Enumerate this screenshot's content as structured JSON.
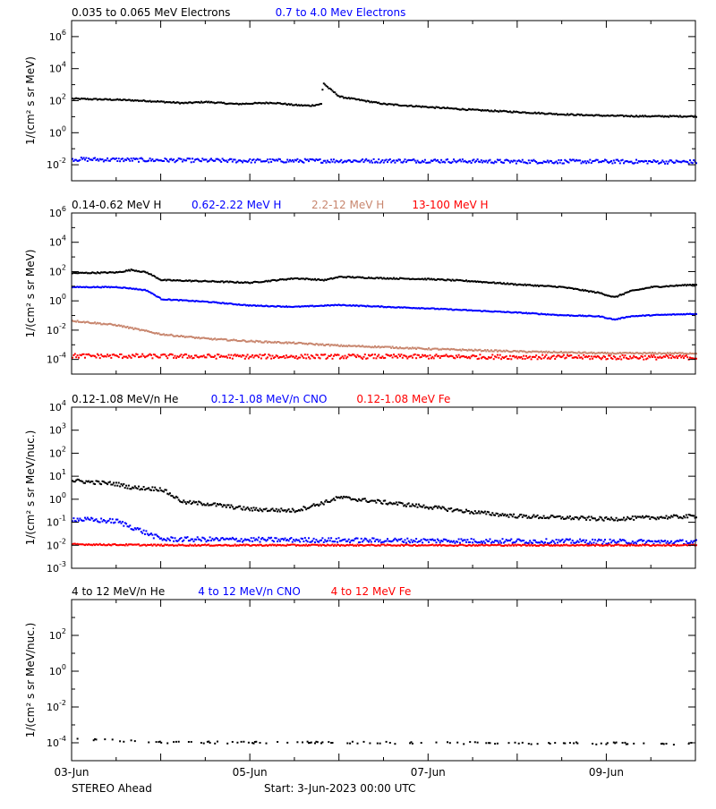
{
  "footer": {
    "spacecraft": "STEREO Ahead",
    "start_label": "Start:  3-Jun-2023 00:00 UTC"
  },
  "x_axis": {
    "start": "2023-06-03",
    "end": "2023-06-10",
    "tick_labels": [
      "03-Jun",
      "05-Jun",
      "07-Jun",
      "09-Jun"
    ],
    "tick_dates": [
      "2023-06-03",
      "2023-06-05",
      "2023-06-07",
      "2023-06-09"
    ]
  },
  "colors": {
    "black": "#000000",
    "blue": "#0000ff",
    "tan": "#c8866e",
    "red": "#ff0000"
  },
  "chart_data": [
    {
      "type": "scatter",
      "legend": [
        {
          "text": "0.035 to 0.065 MeV Electrons",
          "color": "#000000"
        },
        {
          "text": "0.7 to 4.0 Mev Electrons",
          "color": "#0000ff"
        }
      ],
      "ylabel": "1/(cm² s sr MeV)",
      "yscale": "log",
      "ylim_exp": [
        -3,
        7
      ],
      "ytick_exps": [
        -2,
        0,
        2,
        4,
        6
      ],
      "series": [
        {
          "color": "#000000",
          "noise": 0.04,
          "x": [
            "2023-06-03",
            "2023-06-03T12:00",
            "2023-06-03T20:00",
            "2023-06-04T06:00",
            "2023-06-04T12:00",
            "2023-06-04T20:00",
            "2023-06-05T06:00",
            "2023-06-05T12:00",
            "2023-06-05T16:00",
            "2023-06-05T19:00",
            "2023-06-05T19:30",
            "2023-06-05T21:00",
            "2023-06-06",
            "2023-06-06T12:00",
            "2023-06-07",
            "2023-06-07T12:00",
            "2023-06-08",
            "2023-06-08T12:00",
            "2023-06-09",
            "2023-06-09T12:00",
            "2023-06-10"
          ],
          "y": [
            150,
            130,
            110,
            80,
            95,
            70,
            85,
            60,
            55,
            70,
            1500,
            700,
            200,
            70,
            45,
            30,
            22,
            16,
            13,
            12,
            12
          ]
        },
        {
          "color": "#0000ff",
          "noise": 0.12,
          "x": [
            "2023-06-03",
            "2023-06-04",
            "2023-06-05",
            "2023-06-06",
            "2023-06-07",
            "2023-06-08",
            "2023-06-09",
            "2023-06-10"
          ],
          "y": [
            0.025,
            0.022,
            0.02,
            0.02,
            0.02,
            0.018,
            0.018,
            0.017
          ]
        }
      ]
    },
    {
      "type": "scatter",
      "legend": [
        {
          "text": "0.14-0.62 MeV H",
          "color": "#000000"
        },
        {
          "text": "0.62-2.22 MeV H",
          "color": "#0000ff"
        },
        {
          "text": "2.2-12 MeV H",
          "color": "#c8866e"
        },
        {
          "text": "13-100 MeV H",
          "color": "#ff0000"
        }
      ],
      "ylabel": "1/(cm² s sr MeV)",
      "yscale": "log",
      "ylim_exp": [
        -5,
        6
      ],
      "ytick_exps": [
        -4,
        -2,
        0,
        2,
        4,
        6
      ],
      "series": [
        {
          "color": "#000000",
          "noise": 0.04,
          "x": [
            "2023-06-03",
            "2023-06-03T12:00",
            "2023-06-03T16:00",
            "2023-06-03T20:00",
            "2023-06-04",
            "2023-06-04T12:00",
            "2023-06-05",
            "2023-06-05T12:00",
            "2023-06-05T20:00",
            "2023-06-06",
            "2023-06-06T12:00",
            "2023-06-07",
            "2023-06-07T12:00",
            "2023-06-08",
            "2023-06-08T12:00",
            "2023-06-08T22:00",
            "2023-06-09T02:00",
            "2023-06-09T06:00",
            "2023-06-09T12:00",
            "2023-06-10"
          ],
          "y": [
            90,
            100,
            150,
            100,
            30,
            25,
            20,
            40,
            30,
            50,
            40,
            35,
            25,
            15,
            10,
            4,
            2,
            5,
            10,
            15
          ]
        },
        {
          "color": "#0000ff",
          "noise": 0.03,
          "x": [
            "2023-06-03",
            "2023-06-03T12:00",
            "2023-06-03T16:00",
            "2023-06-03T20:00",
            "2023-06-04",
            "2023-06-04T12:00",
            "2023-06-05",
            "2023-06-05T12:00",
            "2023-06-06",
            "2023-06-06T12:00",
            "2023-06-07",
            "2023-06-07T12:00",
            "2023-06-08",
            "2023-06-08T12:00",
            "2023-06-08T22:00",
            "2023-06-09T02:00",
            "2023-06-09T06:00",
            "2023-06-09T12:00",
            "2023-06-10"
          ],
          "y": [
            10,
            10,
            8,
            6,
            1.5,
            1.0,
            0.55,
            0.45,
            0.6,
            0.45,
            0.35,
            0.25,
            0.18,
            0.12,
            0.1,
            0.06,
            0.1,
            0.12,
            0.15
          ]
        },
        {
          "color": "#c8866e",
          "noise": 0.05,
          "x": [
            "2023-06-03",
            "2023-06-03T12:00",
            "2023-06-04",
            "2023-06-04T12:00",
            "2023-06-05",
            "2023-06-05T12:00",
            "2023-06-06",
            "2023-06-06T12:00",
            "2023-06-07",
            "2023-06-08",
            "2023-06-09",
            "2023-06-10"
          ],
          "y": [
            0.05,
            0.025,
            0.006,
            0.003,
            0.002,
            0.0015,
            0.001,
            0.0008,
            0.0006,
            0.0004,
            0.0003,
            0.0003
          ]
        },
        {
          "color": "#ff0000",
          "noise": 0.15,
          "x": [
            "2023-06-03",
            "2023-06-05",
            "2023-06-07",
            "2023-06-09",
            "2023-06-10"
          ],
          "y": [
            0.0002,
            0.00018,
            0.00018,
            0.00016,
            0.00016
          ]
        }
      ]
    },
    {
      "type": "scatter",
      "legend": [
        {
          "text": "0.12-1.08 MeV/n He",
          "color": "#000000"
        },
        {
          "text": "0.12-1.08 MeV/n CNO",
          "color": "#0000ff"
        },
        {
          "text": "0.12-1.08 MeV Fe",
          "color": "#ff0000"
        }
      ],
      "ylabel": "1/(cm² s sr MeV/nuc.)",
      "yscale": "log",
      "ylim_exp": [
        -3,
        4
      ],
      "ytick_exps": [
        -3,
        -2,
        -1,
        0,
        1,
        2,
        3,
        4
      ],
      "series": [
        {
          "color": "#000000",
          "noise": 0.08,
          "x": [
            "2023-06-03",
            "2023-06-03T12:00",
            "2023-06-03T16:00",
            "2023-06-04",
            "2023-06-04T06:00",
            "2023-06-04T12:00",
            "2023-06-05",
            "2023-06-05T12:00",
            "2023-06-05T20:00",
            "2023-06-06",
            "2023-06-06T12:00",
            "2023-06-07",
            "2023-06-07T12:00",
            "2023-06-08",
            "2023-06-09",
            "2023-06-10"
          ],
          "y": [
            7,
            5,
            3.5,
            3,
            0.8,
            0.7,
            0.4,
            0.35,
            0.8,
            1.3,
            0.8,
            0.5,
            0.3,
            0.2,
            0.15,
            0.2
          ]
        },
        {
          "color": "#0000ff",
          "noise": 0.1,
          "x": [
            "2023-06-03",
            "2023-06-03T12:00",
            "2023-06-03T18:00",
            "2023-06-04",
            "2023-06-10"
          ],
          "y": [
            0.15,
            0.12,
            0.05,
            0.02,
            0.015
          ]
        },
        {
          "color": "#ff0000",
          "noise": 0.03,
          "x": [
            "2023-06-03",
            "2023-06-04",
            "2023-06-10"
          ],
          "y": [
            0.012,
            0.011,
            0.011
          ]
        }
      ]
    },
    {
      "type": "scatter",
      "legend": [
        {
          "text": "4 to 12 MeV/n He",
          "color": "#000000"
        },
        {
          "text": "4 to 12 MeV/n CNO",
          "color": "#0000ff"
        },
        {
          "text": "4 to 12 MeV Fe",
          "color": "#ff0000"
        }
      ],
      "ylabel": "1/(cm² s sr MeV/nuc.)",
      "yscale": "log",
      "ylim_exp": [
        -5,
        4
      ],
      "ytick_exps": [
        -4,
        -2,
        0,
        2
      ],
      "series": [
        {
          "color": "#000000",
          "noise": 0.06,
          "sparse": true,
          "x": [
            "2023-06-03",
            "2023-06-03T12:00",
            "2023-06-04",
            "2023-06-10"
          ],
          "y": [
            0.0002,
            0.00015,
            0.00012,
            0.0001
          ]
        }
      ]
    }
  ]
}
